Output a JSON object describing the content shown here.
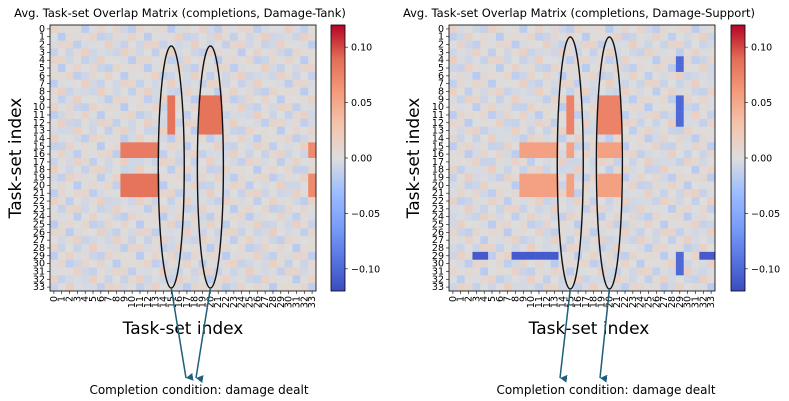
{
  "chart_data": [
    {
      "type": "heatmap",
      "title": "Avg. Task-set Overlap Matrix (completions, Damage-Tank)",
      "xlabel": "Task-set index",
      "ylabel": "Task-set index",
      "rows": [
        "0",
        "1",
        "2",
        "3",
        "4",
        "5",
        "6",
        "7",
        "8",
        "9",
        "10",
        "11",
        "12",
        "13",
        "14",
        "15",
        "16",
        "17",
        "18",
        "19",
        "20",
        "21",
        "22",
        "23",
        "24",
        "25",
        "26",
        "27",
        "28",
        "29",
        "30",
        "31",
        "32",
        "33"
      ],
      "cols": [
        "0",
        "1",
        "2",
        "3",
        "4",
        "5",
        "6",
        "7",
        "8",
        "9",
        "10",
        "11",
        "12",
        "13",
        "14",
        "15",
        "16",
        "17",
        "18",
        "19",
        "20",
        "21",
        "22",
        "23",
        "24",
        "25",
        "26",
        "27",
        "28",
        "29",
        "30",
        "31",
        "32",
        "33"
      ],
      "colorbar": {
        "vmin": -0.12,
        "vmax": 0.12,
        "ticks": [
          0.1,
          0.05,
          0.0,
          -0.05,
          -0.1
        ],
        "tick_labels": [
          "0.10",
          "0.05",
          "0.00",
          "−0.05",
          "−0.10"
        ],
        "colormap": "coolwarm"
      },
      "highlight_columns": [
        15,
        20
      ],
      "strong_rows": [
        {
          "rows": [
            9,
            10,
            11,
            12,
            13
          ],
          "cols": [
            15,
            19,
            20,
            21
          ],
          "value": 0.085
        },
        {
          "rows": [
            15,
            16
          ],
          "cols": [
            9,
            10,
            11,
            12,
            13
          ],
          "value": 0.08
        },
        {
          "rows": [
            19,
            20,
            21
          ],
          "cols": [
            9,
            10,
            11,
            12,
            13
          ],
          "value": 0.085
        },
        {
          "rows": [
            15,
            16,
            19,
            20,
            21
          ],
          "cols": [
            33
          ],
          "value": 0.07
        }
      ],
      "annotation": "Completion condition: damage dealt"
    },
    {
      "type": "heatmap",
      "title": "Avg. Task-set Overlap Matrix (completions, Damage-Support)",
      "xlabel": "Task-set index",
      "ylabel": "Task-set index",
      "rows": [
        "0",
        "1",
        "2",
        "3",
        "4",
        "5",
        "6",
        "7",
        "8",
        "9",
        "10",
        "11",
        "12",
        "13",
        "14",
        "15",
        "16",
        "17",
        "18",
        "19",
        "20",
        "21",
        "22",
        "23",
        "24",
        "25",
        "26",
        "27",
        "28",
        "29",
        "30",
        "31",
        "32",
        "33"
      ],
      "cols": [
        "0",
        "1",
        "2",
        "3",
        "4",
        "5",
        "6",
        "7",
        "8",
        "9",
        "10",
        "11",
        "12",
        "13",
        "14",
        "15",
        "16",
        "17",
        "18",
        "19",
        "20",
        "21",
        "22",
        "23",
        "24",
        "25",
        "26",
        "27",
        "28",
        "29",
        "30",
        "31",
        "32",
        "33"
      ],
      "colorbar": {
        "vmin": -0.12,
        "vmax": 0.12,
        "ticks": [
          0.1,
          0.05,
          0.0,
          -0.05,
          -0.1
        ],
        "tick_labels": [
          "0.10",
          "0.05",
          "0.00",
          "−0.05",
          "−0.10"
        ],
        "colormap": "coolwarm"
      },
      "highlight_columns": [
        15,
        20
      ],
      "strong_rows": [
        {
          "rows": [
            9,
            10,
            11,
            12,
            13
          ],
          "cols": [
            15,
            19,
            20,
            21
          ],
          "value": 0.075
        },
        {
          "rows": [
            15,
            16
          ],
          "cols": [
            9,
            10,
            11,
            12,
            13,
            15,
            19,
            20,
            21
          ],
          "value": 0.055
        },
        {
          "rows": [
            19,
            20,
            21
          ],
          "cols": [
            9,
            10,
            11,
            12,
            13,
            15,
            19,
            20,
            21
          ],
          "value": 0.055
        },
        {
          "rows": [
            29
          ],
          "cols": [
            3,
            4,
            8,
            9,
            10,
            11,
            12,
            13,
            29,
            32,
            33
          ],
          "value": -0.11
        },
        {
          "rows": [
            4,
            5,
            9,
            10,
            11,
            12,
            29,
            30,
            31
          ],
          "cols": [
            29
          ],
          "value": -0.1
        }
      ],
      "annotation": "Completion condition: damage dealt"
    }
  ]
}
